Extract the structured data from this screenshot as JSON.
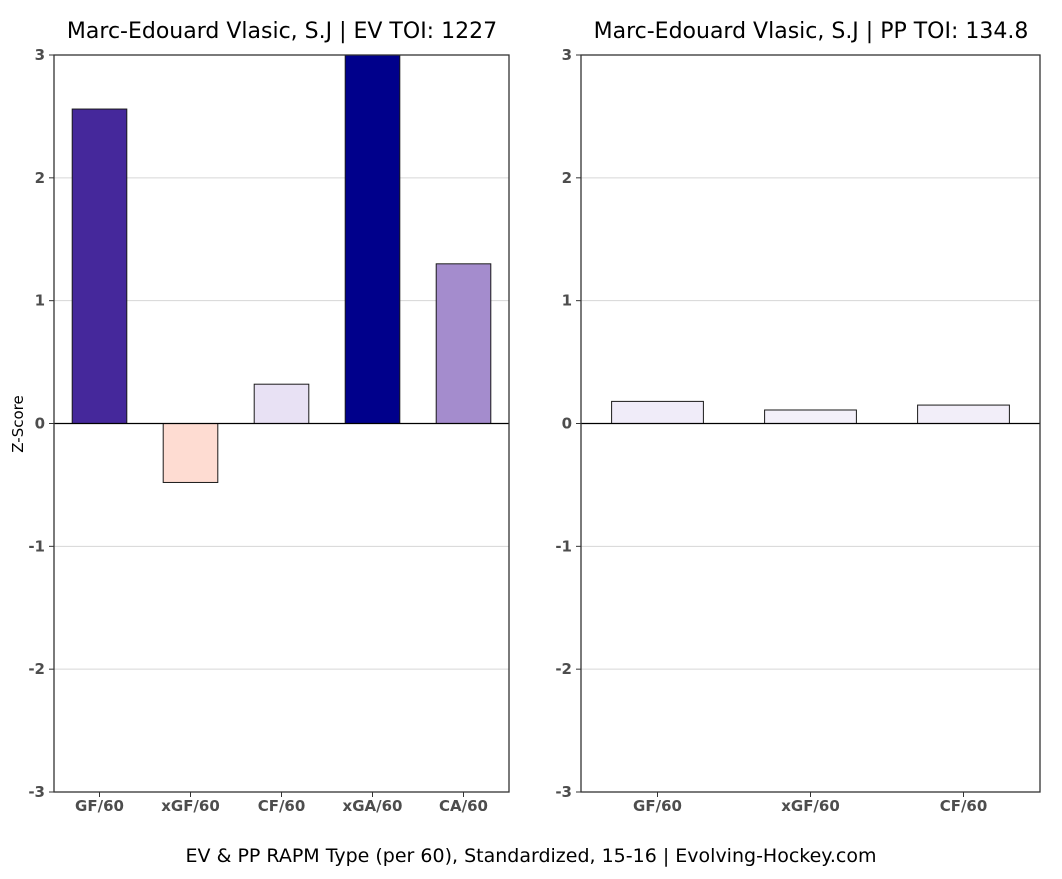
{
  "chart_data": [
    {
      "type": "bar",
      "title": "Marc-Edouard Vlasic, S.J  |  EV TOI: 1227",
      "ylabel": "Z-Score",
      "xlabel": "",
      "ylim": [
        -3,
        3
      ],
      "yticks": [
        -3,
        -2,
        -1,
        0,
        1,
        2,
        3
      ],
      "grid": true,
      "categories": [
        "GF/60",
        "xGF/60",
        "CF/60",
        "xGA/60",
        "CA/60"
      ],
      "values": [
        2.56,
        -0.48,
        0.32,
        3.0,
        1.3
      ],
      "colors": [
        "#45289b",
        "#fedcd2",
        "#e8e1f4",
        "#00008b",
        "#a48ccd"
      ]
    },
    {
      "type": "bar",
      "title": "Marc-Edouard Vlasic, S.J  |  PP TOI: 134.8",
      "ylabel": "",
      "xlabel": "",
      "ylim": [
        -3,
        3
      ],
      "yticks": [
        -3,
        -2,
        -1,
        0,
        1,
        2,
        3
      ],
      "grid": true,
      "categories": [
        "GF/60",
        "xGF/60",
        "CF/60"
      ],
      "values": [
        0.18,
        0.11,
        0.15
      ],
      "colors": [
        "#f0ecf9",
        "#f3f0fa",
        "#f2eef9"
      ]
    }
  ],
  "caption": "EV & PP RAPM Type (per 60), Standardized, 15-16    |    Evolving-Hockey.com"
}
